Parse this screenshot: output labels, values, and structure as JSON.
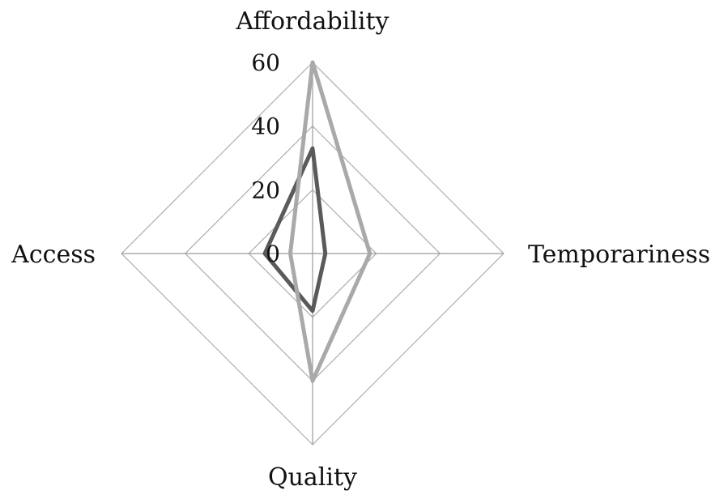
{
  "chart_data": {
    "type": "radar",
    "categories": [
      "Affordability",
      "Temporariness",
      "Quality",
      "Access"
    ],
    "series": [
      {
        "color": "#5a5a5a",
        "values": [
          33,
          4,
          18,
          15
        ]
      },
      {
        "color": "#a9a9a9",
        "values": [
          60,
          18,
          40,
          7
        ]
      }
    ],
    "ticks": [
      "0",
      "20",
      "40",
      "60"
    ],
    "rmax": 60,
    "grid_color": "#b3b3b3",
    "legend": false
  }
}
